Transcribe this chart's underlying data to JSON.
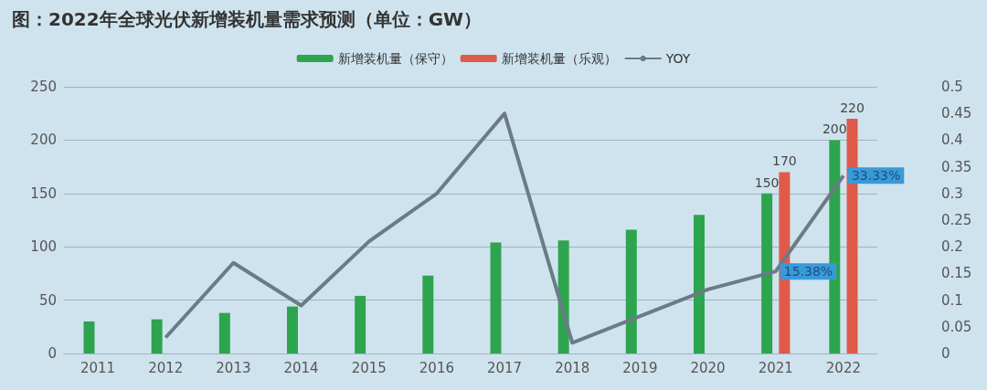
{
  "chart_data": {
    "type": "bar",
    "title": "图：2022年全球光伏新增装机量需求预测（单位：GW）",
    "categories": [
      "2011",
      "2012",
      "2013",
      "2014",
      "2015",
      "2016",
      "2017",
      "2018",
      "2019",
      "2020",
      "2021",
      "2022"
    ],
    "series": [
      {
        "name": "新增装机量（保守）",
        "color": "#2ea44f",
        "values": [
          30,
          32,
          38,
          44,
          54,
          73,
          104,
          106,
          116,
          130,
          150,
          200
        ],
        "value_labels": [
          null,
          null,
          null,
          null,
          null,
          null,
          null,
          null,
          null,
          null,
          "150",
          "200"
        ]
      },
      {
        "name": "新增装机量（乐观）",
        "color": "#e05a4a",
        "values": [
          null,
          null,
          null,
          null,
          null,
          null,
          null,
          null,
          null,
          null,
          170,
          220
        ],
        "value_labels": [
          null,
          null,
          null,
          null,
          null,
          null,
          null,
          null,
          null,
          null,
          "170",
          "220"
        ]
      },
      {
        "name": "YOY",
        "type": "line",
        "axis": "y2",
        "color": "#6b7b86",
        "values": [
          null,
          0.03,
          0.17,
          0.09,
          0.21,
          0.3,
          0.45,
          0.02,
          0.07,
          0.12,
          0.1538,
          0.3333
        ],
        "value_labels": [
          null,
          null,
          null,
          null,
          null,
          null,
          null,
          null,
          null,
          null,
          "15.38%",
          "33.33%"
        ]
      }
    ],
    "ylim": [
      0,
      250
    ],
    "yticks": [
      0,
      50,
      100,
      150,
      200,
      250
    ],
    "y2lim": [
      0,
      0.5
    ],
    "y2ticks": [
      0,
      0.05,
      0.1,
      0.15,
      0.2,
      0.25,
      0.3,
      0.35,
      0.4,
      0.45,
      0.5
    ],
    "grid": "y",
    "legend": "top"
  }
}
